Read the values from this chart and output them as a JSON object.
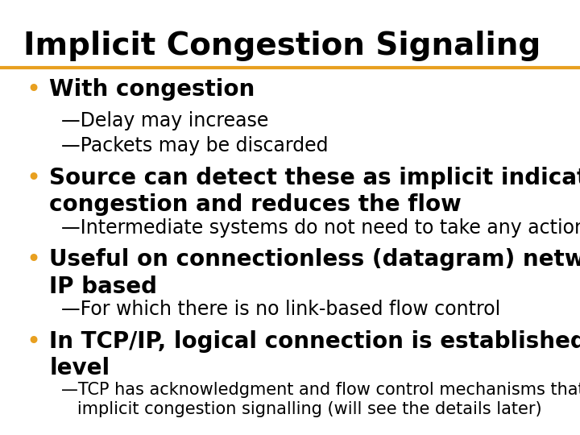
{
  "title": "Implicit Congestion Signaling",
  "title_color": "#000000",
  "title_fontsize": 28,
  "title_bold": true,
  "line_color": "#E8A020",
  "background_color": "#ffffff",
  "bullet_color": "#E8A020",
  "dash_color": "#E8A020",
  "bullets": [
    {
      "text": "With congestion",
      "fontsize": 20,
      "bold": true,
      "sub": [
        {
          "text": "—Delay may increase",
          "fontsize": 17,
          "bold": false
        },
        {
          "text": "—Packets may be discarded",
          "fontsize": 17,
          "bold": false
        }
      ]
    },
    {
      "text": "Source can detect these as implicit indications of\ncongestion and reduces the flow",
      "fontsize": 20,
      "bold": true,
      "sub": [
        {
          "text": "—Intermediate systems do not need to take any action",
          "fontsize": 17,
          "bold": false
        }
      ]
    },
    {
      "text": "Useful on connectionless (datagram) networks, e.g.\nIP based",
      "fontsize": 20,
      "bold": true,
      "sub": [
        {
          "text": "—For which there is no link-based flow control",
          "fontsize": 17,
          "bold": false
        }
      ]
    },
    {
      "text": "In TCP/IP, logical connection is established in TCP\nlevel",
      "fontsize": 20,
      "bold": true,
      "sub": [
        {
          "text": "—TCP has acknowledgment and flow control mechanisms that help\n   implicit congestion signalling (will see the details later)",
          "fontsize": 15,
          "bold": false
        }
      ]
    }
  ]
}
